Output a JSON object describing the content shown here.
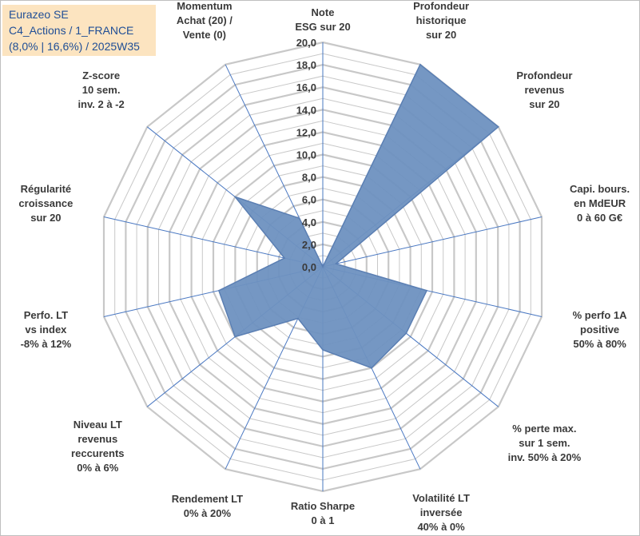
{
  "info_box": {
    "line1": "Eurazeo SE",
    "line2": "C4_Actions / 1_FRANCE",
    "line3": "(8,0% | 16,6%) / 2025W35"
  },
  "chart_data": {
    "type": "radar",
    "rmin": 0,
    "rmax": 20,
    "tick_step": 2,
    "tick_labels": [
      "0,0",
      "2,0",
      "4,0",
      "6,0",
      "8,0",
      "10,0",
      "12,0",
      "14,0",
      "16,0",
      "18,0",
      "20,0"
    ],
    "grid": true,
    "colors": {
      "fill": "#6e91c0",
      "stroke": "#5b7fb3",
      "grid": "#c8c8c8",
      "spoke": "#4a78c2"
    },
    "axes": [
      {
        "lines": [
          "Note",
          "ESG sur 20"
        ],
        "value": 0
      },
      {
        "lines": [
          "Profondeur",
          "historique",
          "sur 20"
        ],
        "value": 20
      },
      {
        "lines": [
          "Profondeur",
          "revenus",
          "sur 20"
        ],
        "value": 20
      },
      {
        "lines": [
          "Capi. bours.",
          "en MdEUR",
          "0 à 60 G€"
        ],
        "value": 1.2
      },
      {
        "lines": [
          "% perfo 1A",
          "positive",
          "50% à 80%"
        ],
        "value": 9.5
      },
      {
        "lines": [
          "% perte max.",
          "sur 1 sem.",
          "inv. 50% à 20%"
        ],
        "value": 9.5
      },
      {
        "lines": [
          "Volatilité LT",
          "inversée",
          "40% à 0%"
        ],
        "value": 10.0
      },
      {
        "lines": [
          "Ratio Sharpe",
          "0 à 1"
        ],
        "value": 7.4
      },
      {
        "lines": [
          "Rendement LT",
          "0% à 20%"
        ],
        "value": 5.1
      },
      {
        "lines": [
          "Niveau LT",
          "revenus",
          "reccurents",
          "0% à 6%"
        ],
        "value": 10.0
      },
      {
        "lines": [
          "Perfo. LT",
          "vs index",
          "-8% à 12%"
        ],
        "value": 9.5
      },
      {
        "lines": [
          "Régularité",
          "croissance",
          "sur 20"
        ],
        "value": 3.5
      },
      {
        "lines": [
          "Z-score",
          "10 sem.",
          "inv. 2 à -2"
        ],
        "value": 10.0
      },
      {
        "lines": [
          "Momentum",
          "Achat (20) /",
          "Vente (0)"
        ],
        "value": 4.8
      }
    ]
  }
}
